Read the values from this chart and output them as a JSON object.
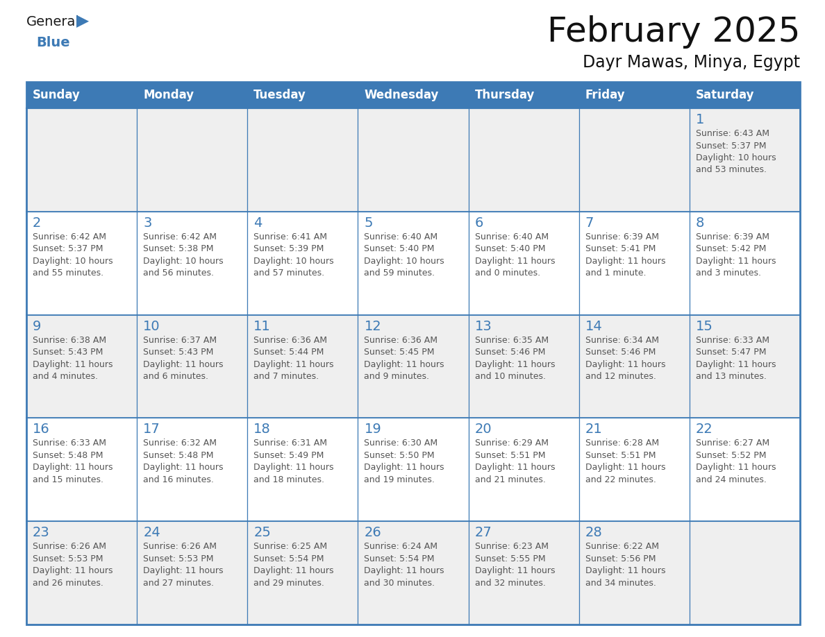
{
  "title": "February 2025",
  "subtitle": "Dayr Mawas, Minya, Egypt",
  "days_of_week": [
    "Sunday",
    "Monday",
    "Tuesday",
    "Wednesday",
    "Thursday",
    "Friday",
    "Saturday"
  ],
  "header_bg": "#3d7ab5",
  "header_text": "#ffffff",
  "row_bg_odd": "#efefef",
  "row_bg_even": "#ffffff",
  "border_color": "#3d7ab5",
  "day_number_color": "#3d7ab5",
  "text_color": "#555555",
  "title_color": "#111111",
  "logo_color": "#3d7ab5",
  "calendar_data": [
    [
      {
        "day": null,
        "info": ""
      },
      {
        "day": null,
        "info": ""
      },
      {
        "day": null,
        "info": ""
      },
      {
        "day": null,
        "info": ""
      },
      {
        "day": null,
        "info": ""
      },
      {
        "day": null,
        "info": ""
      },
      {
        "day": 1,
        "info": "Sunrise: 6:43 AM\nSunset: 5:37 PM\nDaylight: 10 hours\nand 53 minutes."
      }
    ],
    [
      {
        "day": 2,
        "info": "Sunrise: 6:42 AM\nSunset: 5:37 PM\nDaylight: 10 hours\nand 55 minutes."
      },
      {
        "day": 3,
        "info": "Sunrise: 6:42 AM\nSunset: 5:38 PM\nDaylight: 10 hours\nand 56 minutes."
      },
      {
        "day": 4,
        "info": "Sunrise: 6:41 AM\nSunset: 5:39 PM\nDaylight: 10 hours\nand 57 minutes."
      },
      {
        "day": 5,
        "info": "Sunrise: 6:40 AM\nSunset: 5:40 PM\nDaylight: 10 hours\nand 59 minutes."
      },
      {
        "day": 6,
        "info": "Sunrise: 6:40 AM\nSunset: 5:40 PM\nDaylight: 11 hours\nand 0 minutes."
      },
      {
        "day": 7,
        "info": "Sunrise: 6:39 AM\nSunset: 5:41 PM\nDaylight: 11 hours\nand 1 minute."
      },
      {
        "day": 8,
        "info": "Sunrise: 6:39 AM\nSunset: 5:42 PM\nDaylight: 11 hours\nand 3 minutes."
      }
    ],
    [
      {
        "day": 9,
        "info": "Sunrise: 6:38 AM\nSunset: 5:43 PM\nDaylight: 11 hours\nand 4 minutes."
      },
      {
        "day": 10,
        "info": "Sunrise: 6:37 AM\nSunset: 5:43 PM\nDaylight: 11 hours\nand 6 minutes."
      },
      {
        "day": 11,
        "info": "Sunrise: 6:36 AM\nSunset: 5:44 PM\nDaylight: 11 hours\nand 7 minutes."
      },
      {
        "day": 12,
        "info": "Sunrise: 6:36 AM\nSunset: 5:45 PM\nDaylight: 11 hours\nand 9 minutes."
      },
      {
        "day": 13,
        "info": "Sunrise: 6:35 AM\nSunset: 5:46 PM\nDaylight: 11 hours\nand 10 minutes."
      },
      {
        "day": 14,
        "info": "Sunrise: 6:34 AM\nSunset: 5:46 PM\nDaylight: 11 hours\nand 12 minutes."
      },
      {
        "day": 15,
        "info": "Sunrise: 6:33 AM\nSunset: 5:47 PM\nDaylight: 11 hours\nand 13 minutes."
      }
    ],
    [
      {
        "day": 16,
        "info": "Sunrise: 6:33 AM\nSunset: 5:48 PM\nDaylight: 11 hours\nand 15 minutes."
      },
      {
        "day": 17,
        "info": "Sunrise: 6:32 AM\nSunset: 5:48 PM\nDaylight: 11 hours\nand 16 minutes."
      },
      {
        "day": 18,
        "info": "Sunrise: 6:31 AM\nSunset: 5:49 PM\nDaylight: 11 hours\nand 18 minutes."
      },
      {
        "day": 19,
        "info": "Sunrise: 6:30 AM\nSunset: 5:50 PM\nDaylight: 11 hours\nand 19 minutes."
      },
      {
        "day": 20,
        "info": "Sunrise: 6:29 AM\nSunset: 5:51 PM\nDaylight: 11 hours\nand 21 minutes."
      },
      {
        "day": 21,
        "info": "Sunrise: 6:28 AM\nSunset: 5:51 PM\nDaylight: 11 hours\nand 22 minutes."
      },
      {
        "day": 22,
        "info": "Sunrise: 6:27 AM\nSunset: 5:52 PM\nDaylight: 11 hours\nand 24 minutes."
      }
    ],
    [
      {
        "day": 23,
        "info": "Sunrise: 6:26 AM\nSunset: 5:53 PM\nDaylight: 11 hours\nand 26 minutes."
      },
      {
        "day": 24,
        "info": "Sunrise: 6:26 AM\nSunset: 5:53 PM\nDaylight: 11 hours\nand 27 minutes."
      },
      {
        "day": 25,
        "info": "Sunrise: 6:25 AM\nSunset: 5:54 PM\nDaylight: 11 hours\nand 29 minutes."
      },
      {
        "day": 26,
        "info": "Sunrise: 6:24 AM\nSunset: 5:54 PM\nDaylight: 11 hours\nand 30 minutes."
      },
      {
        "day": 27,
        "info": "Sunrise: 6:23 AM\nSunset: 5:55 PM\nDaylight: 11 hours\nand 32 minutes."
      },
      {
        "day": 28,
        "info": "Sunrise: 6:22 AM\nSunset: 5:56 PM\nDaylight: 11 hours\nand 34 minutes."
      },
      {
        "day": null,
        "info": ""
      }
    ]
  ]
}
